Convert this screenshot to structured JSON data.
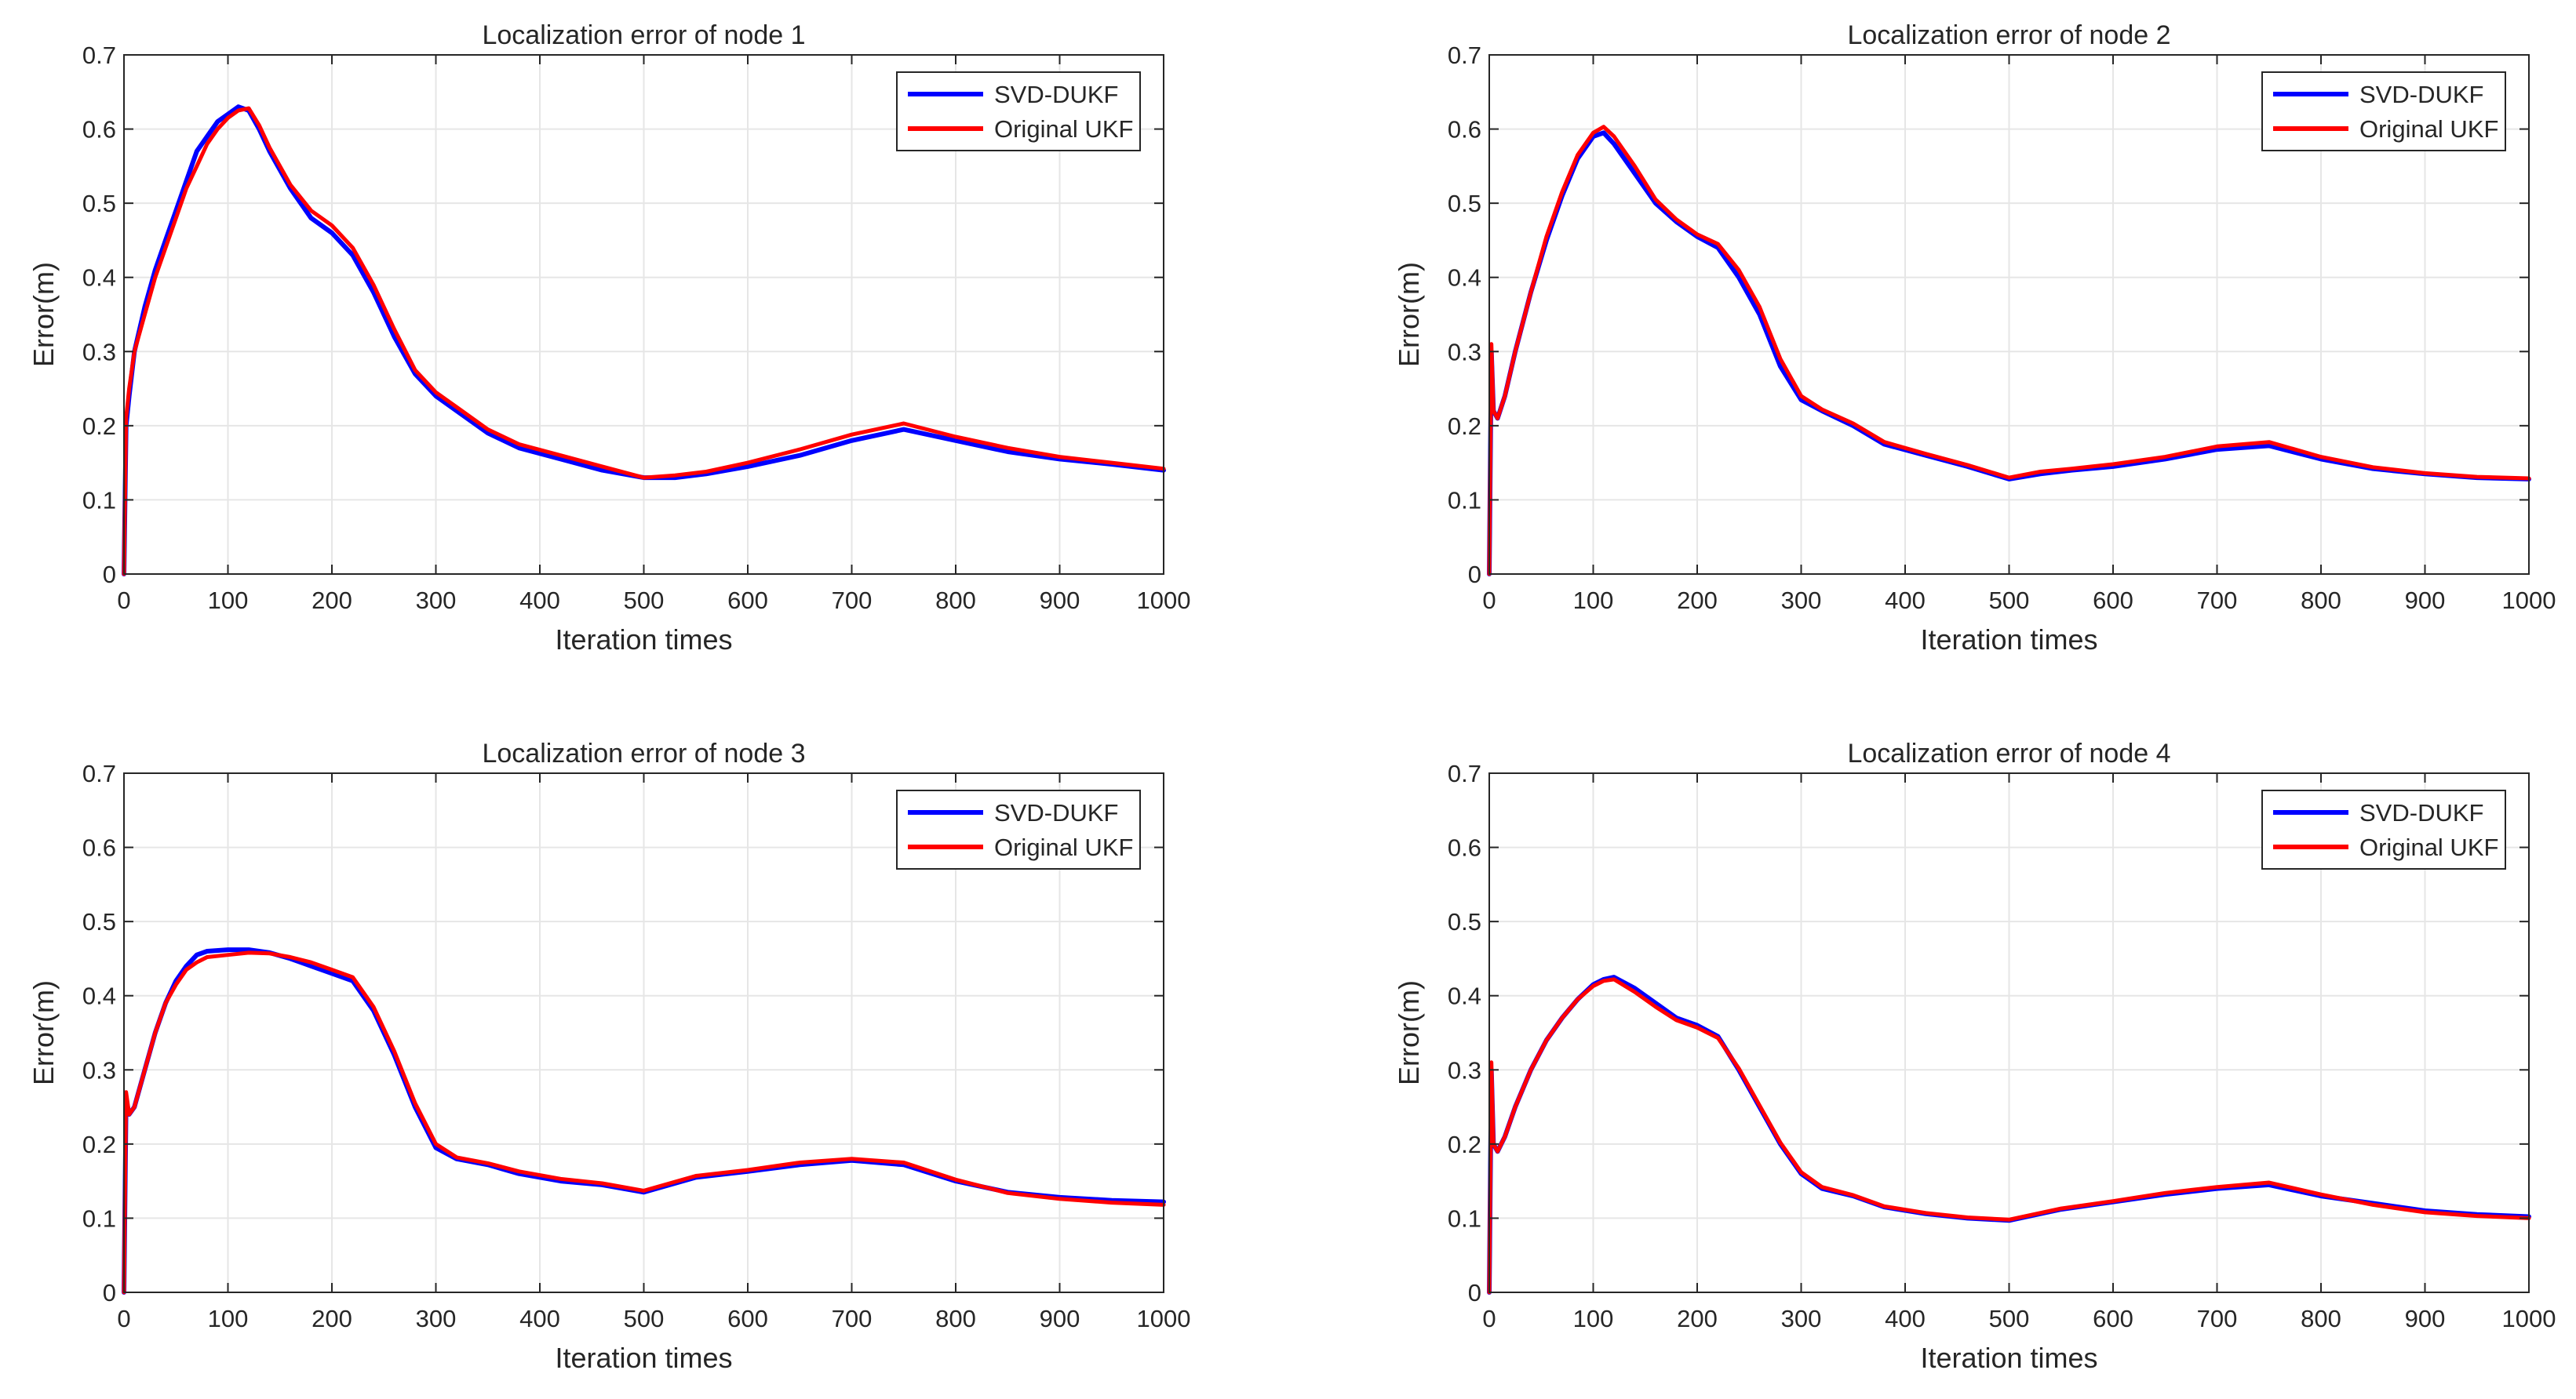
{
  "figure": {
    "background": "#ffffff"
  },
  "colors": {
    "svd_dukf": "#0000ff",
    "original_ukf": "#ff0000",
    "grid": "#e6e6e6",
    "axis": "#262626"
  },
  "chart_data": [
    {
      "type": "line",
      "title": "Localization error of node 1",
      "xlabel": "Iteration times",
      "ylabel": "Error(m)",
      "xlim": [
        0,
        1000
      ],
      "ylim": [
        0,
        0.7
      ],
      "xticks": [
        0,
        100,
        200,
        300,
        400,
        500,
        600,
        700,
        800,
        900,
        1000
      ],
      "yticks": [
        0,
        0.1,
        0.2,
        0.3,
        0.4,
        0.5,
        0.6,
        0.7
      ],
      "xtick_labels": [
        "0",
        "100",
        "200",
        "300",
        "400",
        "500",
        "600",
        "700",
        "800",
        "900",
        "1000"
      ],
      "ytick_labels": [
        "0",
        "0.1",
        "0.2",
        "0.3",
        "0.4",
        "0.5",
        "0.6",
        "0.7"
      ],
      "grid": true,
      "legend": "top-right",
      "series": [
        {
          "name": "SVD-DUKF",
          "color": "#0000ff",
          "x": [
            0,
            2,
            5,
            10,
            20,
            30,
            40,
            50,
            60,
            70,
            80,
            90,
            100,
            110,
            120,
            130,
            140,
            160,
            180,
            200,
            220,
            240,
            260,
            280,
            300,
            320,
            350,
            380,
            420,
            460,
            500,
            530,
            560,
            600,
            650,
            700,
            750,
            800,
            850,
            900,
            950,
            1000
          ],
          "y": [
            0,
            0.2,
            0.24,
            0.3,
            0.36,
            0.41,
            0.45,
            0.49,
            0.53,
            0.57,
            0.59,
            0.61,
            0.62,
            0.63,
            0.625,
            0.6,
            0.57,
            0.52,
            0.48,
            0.46,
            0.43,
            0.38,
            0.32,
            0.27,
            0.24,
            0.22,
            0.19,
            0.17,
            0.155,
            0.14,
            0.13,
            0.13,
            0.135,
            0.145,
            0.16,
            0.18,
            0.195,
            0.18,
            0.165,
            0.155,
            0.148,
            0.14
          ]
        },
        {
          "name": "Original UKF",
          "color": "#ff0000",
          "x": [
            0,
            2,
            5,
            10,
            20,
            30,
            40,
            50,
            60,
            70,
            80,
            90,
            100,
            110,
            120,
            130,
            140,
            160,
            180,
            200,
            220,
            240,
            260,
            280,
            300,
            320,
            350,
            380,
            420,
            460,
            500,
            530,
            560,
            600,
            650,
            700,
            750,
            800,
            850,
            900,
            950,
            1000
          ],
          "y": [
            0,
            0.21,
            0.25,
            0.3,
            0.35,
            0.4,
            0.44,
            0.48,
            0.52,
            0.55,
            0.58,
            0.6,
            0.615,
            0.625,
            0.628,
            0.605,
            0.575,
            0.525,
            0.49,
            0.47,
            0.44,
            0.39,
            0.33,
            0.275,
            0.245,
            0.225,
            0.195,
            0.175,
            0.16,
            0.145,
            0.13,
            0.133,
            0.138,
            0.15,
            0.168,
            0.188,
            0.203,
            0.185,
            0.17,
            0.158,
            0.15,
            0.142
          ]
        }
      ]
    },
    {
      "type": "line",
      "title": "Localization error of node 2",
      "xlabel": "Iteration times",
      "ylabel": "Error(m)",
      "xlim": [
        0,
        1000
      ],
      "ylim": [
        0,
        0.7
      ],
      "xticks": [
        0,
        100,
        200,
        300,
        400,
        500,
        600,
        700,
        800,
        900,
        1000
      ],
      "yticks": [
        0,
        0.1,
        0.2,
        0.3,
        0.4,
        0.5,
        0.6,
        0.7
      ],
      "xtick_labels": [
        "0",
        "100",
        "200",
        "300",
        "400",
        "500",
        "600",
        "700",
        "800",
        "900",
        "1000"
      ],
      "ytick_labels": [
        "0",
        "0.1",
        "0.2",
        "0.3",
        "0.4",
        "0.5",
        "0.6",
        "0.7"
      ],
      "grid": true,
      "legend": "top-right",
      "series": [
        {
          "name": "SVD-DUKF",
          "color": "#0000ff",
          "x": [
            0,
            2,
            4,
            8,
            15,
            25,
            40,
            55,
            70,
            85,
            100,
            110,
            120,
            140,
            160,
            180,
            200,
            220,
            240,
            260,
            280,
            300,
            320,
            350,
            380,
            420,
            460,
            500,
            530,
            560,
            600,
            650,
            700,
            750,
            800,
            850,
            900,
            950,
            1000
          ],
          "y": [
            0,
            0.3,
            0.22,
            0.21,
            0.24,
            0.3,
            0.38,
            0.45,
            0.51,
            0.56,
            0.59,
            0.595,
            0.58,
            0.54,
            0.5,
            0.475,
            0.455,
            0.44,
            0.4,
            0.35,
            0.28,
            0.235,
            0.22,
            0.2,
            0.175,
            0.16,
            0.145,
            0.128,
            0.135,
            0.14,
            0.145,
            0.155,
            0.168,
            0.173,
            0.155,
            0.142,
            0.135,
            0.13,
            0.128
          ]
        },
        {
          "name": "Original UKF",
          "color": "#ff0000",
          "x": [
            0,
            2,
            4,
            8,
            15,
            25,
            40,
            55,
            70,
            85,
            100,
            110,
            120,
            140,
            160,
            180,
            200,
            220,
            240,
            260,
            280,
            300,
            320,
            350,
            380,
            420,
            460,
            500,
            530,
            560,
            600,
            650,
            700,
            750,
            800,
            850,
            900,
            950,
            1000
          ],
          "y": [
            0,
            0.31,
            0.22,
            0.21,
            0.24,
            0.3,
            0.38,
            0.455,
            0.515,
            0.565,
            0.595,
            0.603,
            0.59,
            0.55,
            0.505,
            0.478,
            0.458,
            0.445,
            0.41,
            0.36,
            0.29,
            0.24,
            0.222,
            0.203,
            0.178,
            0.162,
            0.147,
            0.13,
            0.138,
            0.142,
            0.148,
            0.158,
            0.172,
            0.178,
            0.158,
            0.144,
            0.136,
            0.131,
            0.129
          ]
        }
      ]
    },
    {
      "type": "line",
      "title": "Localization error of node 3",
      "xlabel": "Iteration times",
      "ylabel": "Error(m)",
      "xlim": [
        0,
        1000
      ],
      "ylim": [
        0,
        0.7
      ],
      "xticks": [
        0,
        100,
        200,
        300,
        400,
        500,
        600,
        700,
        800,
        900,
        1000
      ],
      "yticks": [
        0,
        0.1,
        0.2,
        0.3,
        0.4,
        0.5,
        0.6,
        0.7
      ],
      "xtick_labels": [
        "0",
        "100",
        "200",
        "300",
        "400",
        "500",
        "600",
        "700",
        "800",
        "900",
        "1000"
      ],
      "ytick_labels": [
        "0",
        "0.1",
        "0.2",
        "0.3",
        "0.4",
        "0.5",
        "0.6",
        "0.7"
      ],
      "grid": true,
      "legend": "top-right",
      "series": [
        {
          "name": "SVD-DUKF",
          "color": "#0000ff",
          "x": [
            0,
            2,
            5,
            10,
            20,
            30,
            40,
            50,
            60,
            70,
            80,
            100,
            120,
            140,
            160,
            180,
            200,
            220,
            240,
            260,
            280,
            300,
            320,
            350,
            380,
            420,
            460,
            500,
            550,
            600,
            650,
            700,
            750,
            800,
            850,
            900,
            950,
            1000
          ],
          "y": [
            0,
            0.26,
            0.24,
            0.25,
            0.3,
            0.35,
            0.39,
            0.42,
            0.44,
            0.455,
            0.46,
            0.462,
            0.462,
            0.458,
            0.45,
            0.44,
            0.43,
            0.42,
            0.38,
            0.32,
            0.25,
            0.195,
            0.18,
            0.172,
            0.16,
            0.15,
            0.145,
            0.135,
            0.155,
            0.163,
            0.172,
            0.178,
            0.172,
            0.15,
            0.135,
            0.128,
            0.124,
            0.122
          ]
        },
        {
          "name": "Original UKF",
          "color": "#ff0000",
          "x": [
            0,
            2,
            5,
            10,
            20,
            30,
            40,
            50,
            60,
            70,
            80,
            100,
            120,
            140,
            160,
            180,
            200,
            220,
            240,
            260,
            280,
            300,
            320,
            350,
            380,
            420,
            460,
            500,
            550,
            600,
            650,
            700,
            750,
            800,
            850,
            900,
            950,
            1000
          ],
          "y": [
            0,
            0.27,
            0.24,
            0.25,
            0.3,
            0.35,
            0.39,
            0.415,
            0.435,
            0.445,
            0.452,
            0.455,
            0.458,
            0.457,
            0.452,
            0.445,
            0.435,
            0.425,
            0.385,
            0.325,
            0.255,
            0.2,
            0.182,
            0.174,
            0.163,
            0.153,
            0.147,
            0.137,
            0.157,
            0.165,
            0.175,
            0.18,
            0.175,
            0.152,
            0.134,
            0.126,
            0.121,
            0.118
          ]
        }
      ]
    },
    {
      "type": "line",
      "title": "Localization error of node 4",
      "xlabel": "Iteration times",
      "ylabel": "Error(m)",
      "xlim": [
        0,
        1000
      ],
      "ylim": [
        0,
        0.7
      ],
      "xticks": [
        0,
        100,
        200,
        300,
        400,
        500,
        600,
        700,
        800,
        900,
        1000
      ],
      "yticks": [
        0,
        0.1,
        0.2,
        0.3,
        0.4,
        0.5,
        0.6,
        0.7
      ],
      "xtick_labels": [
        "0",
        "100",
        "200",
        "300",
        "400",
        "500",
        "600",
        "700",
        "800",
        "900",
        "1000"
      ],
      "ytick_labels": [
        "0",
        "0.1",
        "0.2",
        "0.3",
        "0.4",
        "0.5",
        "0.6",
        "0.7"
      ],
      "grid": true,
      "legend": "top-right",
      "series": [
        {
          "name": "SVD-DUKF",
          "color": "#0000ff",
          "x": [
            0,
            2,
            4,
            8,
            15,
            25,
            40,
            55,
            70,
            85,
            100,
            110,
            120,
            140,
            160,
            180,
            200,
            220,
            240,
            260,
            280,
            300,
            320,
            350,
            380,
            420,
            460,
            500,
            550,
            600,
            650,
            700,
            750,
            800,
            850,
            900,
            950,
            1000
          ],
          "y": [
            0,
            0.3,
            0.2,
            0.19,
            0.21,
            0.25,
            0.3,
            0.34,
            0.37,
            0.395,
            0.415,
            0.422,
            0.425,
            0.41,
            0.39,
            0.37,
            0.36,
            0.345,
            0.3,
            0.25,
            0.2,
            0.16,
            0.14,
            0.13,
            0.115,
            0.106,
            0.1,
            0.097,
            0.112,
            0.122,
            0.132,
            0.14,
            0.145,
            0.13,
            0.12,
            0.11,
            0.105,
            0.102
          ]
        },
        {
          "name": "Original UKF",
          "color": "#ff0000",
          "x": [
            0,
            2,
            4,
            8,
            15,
            25,
            40,
            55,
            70,
            85,
            100,
            110,
            120,
            140,
            160,
            180,
            200,
            220,
            240,
            260,
            280,
            300,
            320,
            350,
            380,
            420,
            460,
            500,
            550,
            600,
            650,
            700,
            750,
            800,
            850,
            900,
            950,
            1000
          ],
          "y": [
            0,
            0.31,
            0.2,
            0.19,
            0.21,
            0.25,
            0.3,
            0.34,
            0.37,
            0.395,
            0.413,
            0.42,
            0.422,
            0.405,
            0.385,
            0.367,
            0.357,
            0.343,
            0.302,
            0.252,
            0.202,
            0.162,
            0.142,
            0.131,
            0.116,
            0.107,
            0.101,
            0.098,
            0.113,
            0.123,
            0.134,
            0.142,
            0.148,
            0.132,
            0.118,
            0.108,
            0.103,
            0.1
          ]
        }
      ]
    }
  ]
}
